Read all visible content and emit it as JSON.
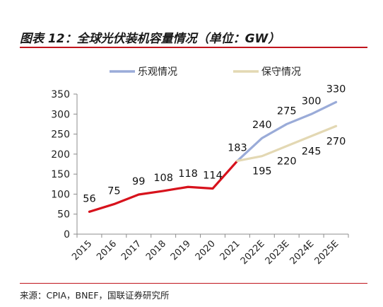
{
  "header": {
    "title": "图表 12：全球光伏装机容量情况（单位：GW）"
  },
  "footer": {
    "source": "来源：CPIA，BNEF，国联证券研究所"
  },
  "colors": {
    "accent": "#c0141c",
    "historical": "#d7121c",
    "optimistic": "#9aabd8",
    "conservative": "#e3d8b3",
    "axis": "#8c8c8c"
  },
  "chart_data": {
    "type": "line",
    "categories": [
      "2015",
      "2016",
      "2017",
      "2018",
      "2019",
      "2020",
      "2021",
      "2022E",
      "2023E",
      "2024E",
      "2025E"
    ],
    "ylim": [
      0,
      350
    ],
    "yticks": [
      0,
      50,
      100,
      150,
      200,
      250,
      300,
      350
    ],
    "grid": false,
    "legend_position": "top",
    "series": [
      {
        "key": "historical",
        "values": [
          56,
          75,
          99,
          108,
          118,
          114,
          183,
          null,
          null,
          null,
          null
        ]
      },
      {
        "key": "optimistic",
        "name": "乐观情况",
        "values": [
          null,
          null,
          null,
          null,
          null,
          null,
          183,
          240,
          275,
          300,
          330
        ]
      },
      {
        "key": "conservative",
        "name": "保守情况",
        "values": [
          null,
          null,
          null,
          null,
          null,
          null,
          183,
          195,
          220,
          245,
          270
        ]
      }
    ]
  }
}
